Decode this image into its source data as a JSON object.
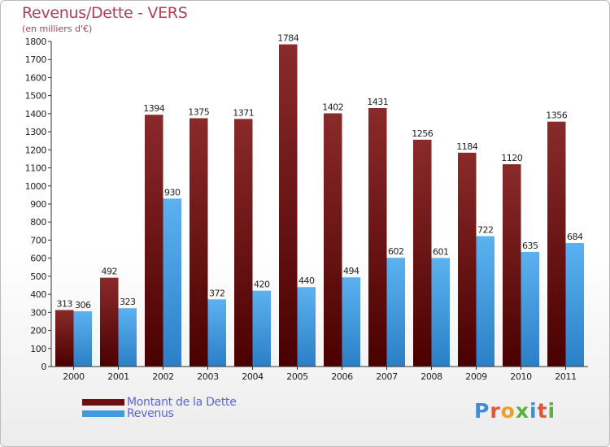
{
  "header": {
    "title": "Revenus/Dette - VERS",
    "subtitle": "(en milliers d'€)"
  },
  "legend": {
    "items": [
      {
        "label": "Montant de la Dette",
        "color": "#6e0f12"
      },
      {
        "label": "Revenus",
        "color": "#3f9be0"
      }
    ]
  },
  "logo": {
    "text": "Proxiti"
  },
  "chart_data": {
    "type": "bar",
    "title": "Revenus/Dette - VERS",
    "subtitle": "(en milliers d'€)",
    "xlabel": "",
    "ylabel": "",
    "ylim": [
      0,
      1800
    ],
    "yticks": [
      0,
      100,
      200,
      300,
      400,
      500,
      600,
      700,
      800,
      900,
      1000,
      1100,
      1200,
      1300,
      1400,
      1500,
      1600,
      1700,
      1800
    ],
    "grid": false,
    "legend_position": "bottom-left",
    "categories": [
      "2000",
      "2001",
      "2002",
      "2003",
      "2004",
      "2005",
      "2006",
      "2007",
      "2008",
      "2009",
      "2010",
      "2011"
    ],
    "series": [
      {
        "name": "Montant de la Dette",
        "color": "#6e0f12",
        "values": [
          313,
          492,
          1394,
          1375,
          1371,
          1784,
          1402,
          1431,
          1256,
          1184,
          1120,
          1356
        ]
      },
      {
        "name": "Revenus",
        "color": "#3f9be0",
        "values": [
          306,
          323,
          930,
          372,
          420,
          440,
          494,
          602,
          601,
          722,
          635,
          684
        ]
      }
    ]
  }
}
